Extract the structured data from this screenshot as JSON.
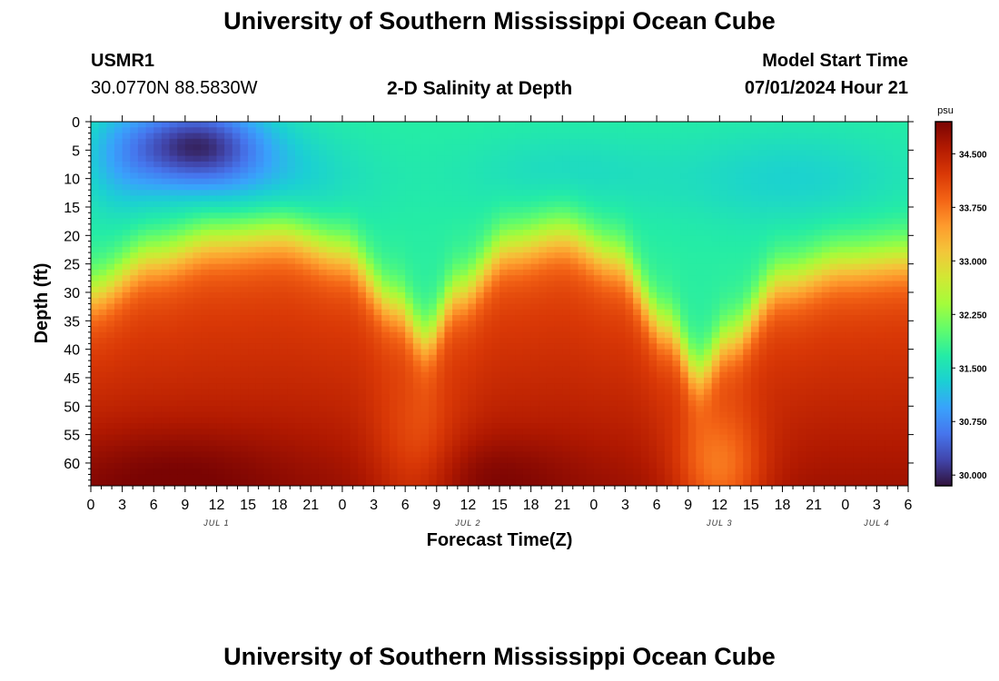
{
  "page": {
    "title_top": "University of Southern Mississippi Ocean Cube",
    "title_bottom": "University of Southern Mississippi Ocean Cube",
    "station_id": "USMR1",
    "station_coords": "30.0770N  88.5830W",
    "model_start_label": "Model Start Time",
    "model_start_value": "07/01/2024 Hour 21"
  },
  "chart_data": {
    "type": "heatmap",
    "title": "2-D Salinity at Depth",
    "xlabel": "Forecast Time(Z)",
    "ylabel": "Depth (ft)",
    "x_ticks": [
      "0",
      "3",
      "6",
      "9",
      "12",
      "15",
      "18",
      "21",
      "0",
      "3",
      "6",
      "9",
      "12",
      "15",
      "18",
      "21",
      "0",
      "3",
      "6",
      "9",
      "12",
      "15",
      "18",
      "21",
      "0",
      "3",
      "6"
    ],
    "x_hours_range": [
      0,
      78
    ],
    "date_labels": [
      {
        "text": "JUL 1",
        "hour": 12
      },
      {
        "text": "JUL 2",
        "hour": 36
      },
      {
        "text": "JUL 3",
        "hour": 60
      },
      {
        "text": "JUL 4",
        "hour": 75
      }
    ],
    "y_ticks": [
      0,
      5,
      10,
      15,
      20,
      25,
      30,
      35,
      40,
      45,
      50,
      55,
      60
    ],
    "ylim": [
      0,
      64
    ],
    "colorbar": {
      "unit": "psu",
      "ticks": [
        "30.000",
        "30.750",
        "31.500",
        "32.250",
        "33.000",
        "33.750",
        "34.500"
      ],
      "range": [
        29.85,
        34.95
      ],
      "colors": [
        "#30123b",
        "#4145ab",
        "#4675ed",
        "#39a2fc",
        "#1bcfd4",
        "#24eca6",
        "#61fc6c",
        "#a4fc3b",
        "#d1e834",
        "#f3c63a",
        "#fe9b2d",
        "#f36315",
        "#d93806",
        "#b11901",
        "#7a0403"
      ]
    },
    "halocline_depth_ft_by_hour": [
      {
        "hour": 0,
        "depth": 30
      },
      {
        "hour": 6,
        "depth": 24
      },
      {
        "hour": 12,
        "depth": 21
      },
      {
        "hour": 18,
        "depth": 20
      },
      {
        "hour": 24,
        "depth": 23
      },
      {
        "hour": 29,
        "depth": 32
      },
      {
        "hour": 32,
        "depth": 38
      },
      {
        "hour": 35,
        "depth": 30
      },
      {
        "hour": 40,
        "depth": 22
      },
      {
        "hour": 45,
        "depth": 20
      },
      {
        "hour": 50,
        "depth": 24
      },
      {
        "hour": 55,
        "depth": 36
      },
      {
        "hour": 58,
        "depth": 44
      },
      {
        "hour": 61,
        "depth": 38
      },
      {
        "hour": 66,
        "depth": 28
      },
      {
        "hour": 72,
        "depth": 25
      },
      {
        "hour": 78,
        "depth": 24
      }
    ],
    "surface_min_psu": {
      "value": 29.9,
      "hour": 10,
      "depth_ft": 4
    }
  }
}
